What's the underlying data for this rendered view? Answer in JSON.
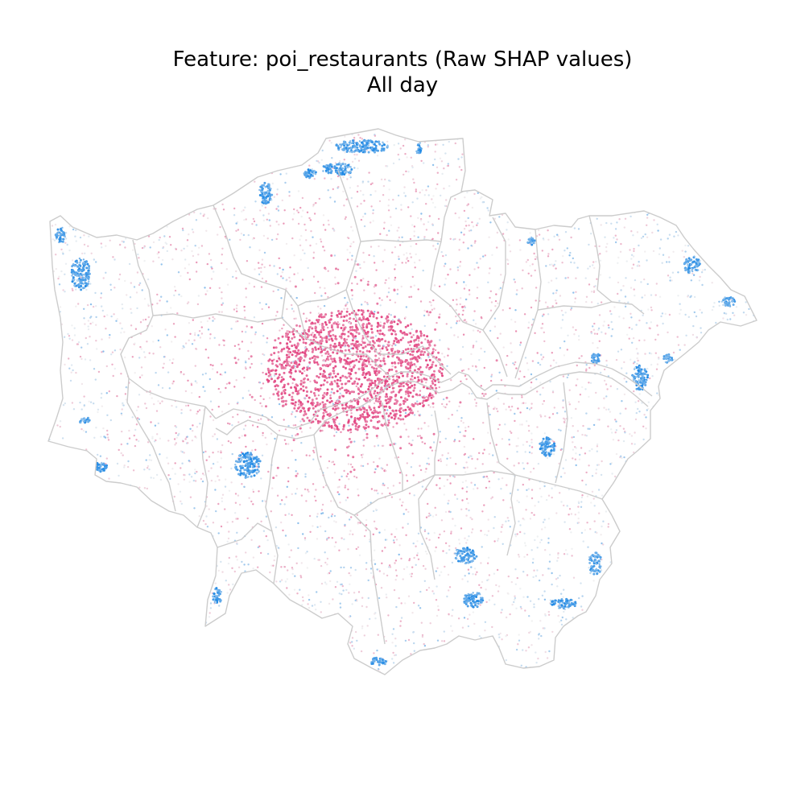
{
  "title": {
    "line1": "Feature: poi_restaurants (Raw SHAP values)",
    "line2": "All day"
  },
  "map": {
    "region": "Greater London boroughs",
    "boundary_color": "#cccccc",
    "river": "River Thames",
    "color_scale": {
      "positive": "#e3417f",
      "positive_light": "#f7c6d8",
      "neutral": "#f2f2f2",
      "negative_light": "#c7e3fb",
      "negative": "#1e88e5"
    }
  }
}
